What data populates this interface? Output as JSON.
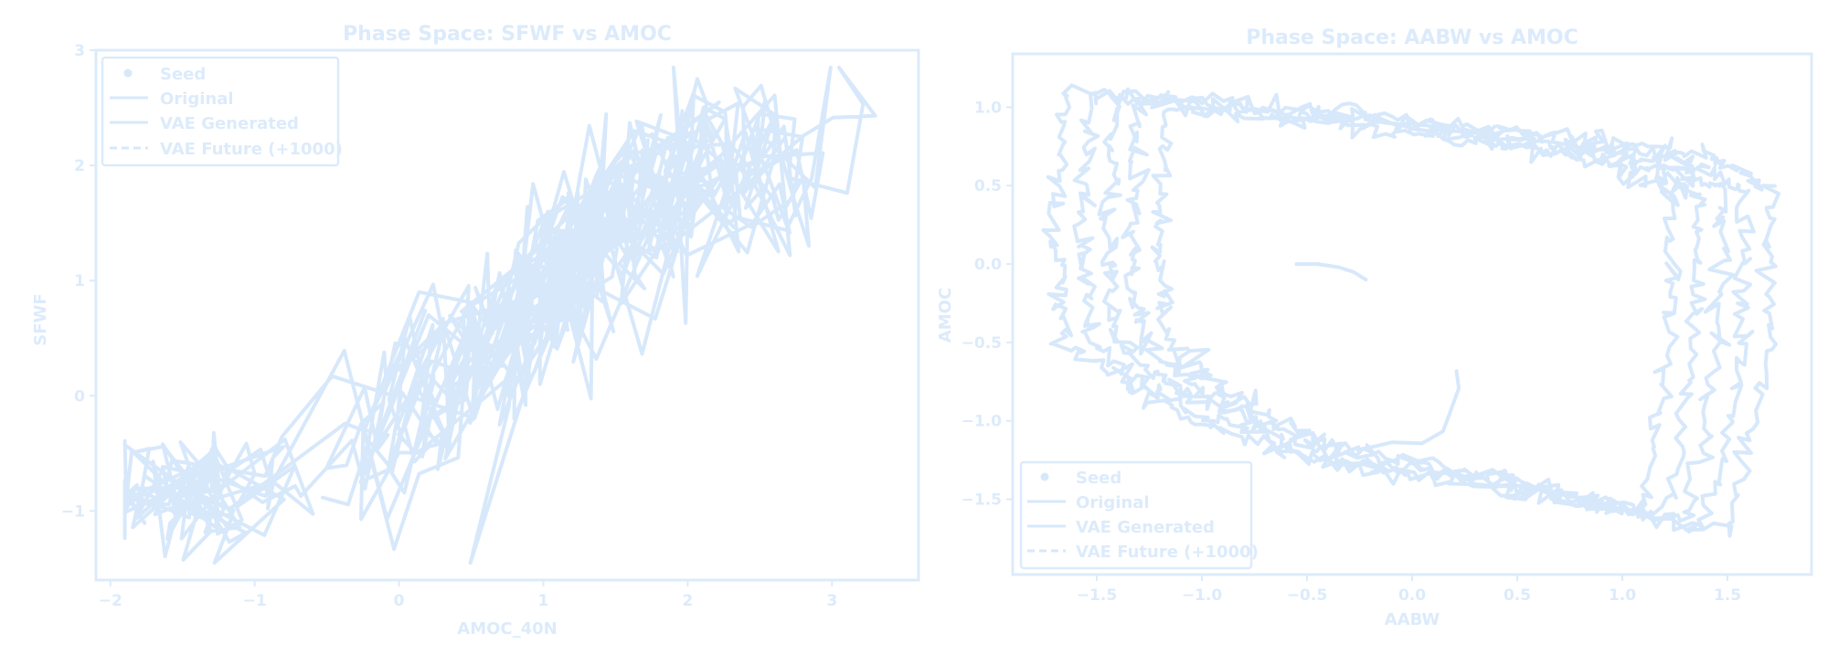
{
  "colors": {
    "series": "#d7e8fb",
    "axes": "#dcebfb",
    "background": "#ffffff"
  },
  "chart_data": [
    {
      "type": "line",
      "title": "Phase Space: SFWF vs AMOC",
      "xlabel": "AMOC_40N",
      "ylabel": "SFWF",
      "xlim": [
        -2.1,
        3.6
      ],
      "ylim": [
        -1.6,
        3.0
      ],
      "xticks": [
        -2,
        -1,
        0,
        1,
        2,
        3
      ],
      "yticks": [
        -1,
        0,
        1,
        2,
        3
      ],
      "xtick_labels": [
        "−2",
        "−1",
        "0",
        "1",
        "2",
        "3"
      ],
      "ytick_labels": [
        "−1",
        "0",
        "1",
        "2",
        "3"
      ],
      "legend": {
        "position": "upper-left",
        "entries": [
          "Seed",
          "Original",
          "VAE Generated",
          "VAE Future (+1000)"
        ]
      },
      "grid": false,
      "series": [
        {
          "name": "Original",
          "style": "solid",
          "trend": {
            "x_range": [
              -1.9,
              3.3
            ],
            "center_points": [
              [
                -1.8,
                -0.85
              ],
              [
                -1.4,
                -0.85
              ],
              [
                -1.0,
                -0.75
              ],
              [
                -0.5,
                -0.55
              ],
              [
                0.0,
                -0.2
              ],
              [
                0.5,
                0.3
              ],
              [
                1.0,
                0.9
              ],
              [
                1.5,
                1.5
              ],
              [
                2.0,
                1.85
              ],
              [
                2.5,
                2.0
              ],
              [
                3.0,
                2.1
              ],
              [
                3.3,
                2.2
              ]
            ],
            "spread": 0.55,
            "n_points": 700
          }
        },
        {
          "name": "VAE Generated",
          "style": "solid",
          "values": []
        },
        {
          "name": "VAE Future (+1000)",
          "style": "dashed",
          "values": []
        },
        {
          "name": "Seed",
          "style": "marker",
          "values": []
        }
      ]
    },
    {
      "type": "line",
      "title": "Phase Space: AABW vs AMOC",
      "xlabel": "AABW",
      "ylabel": "AMOC",
      "xlim": [
        -1.9,
        1.9
      ],
      "ylim": [
        -1.98,
        1.34
      ],
      "xticks": [
        -1.5,
        -1.0,
        -0.5,
        0.0,
        0.5,
        1.0,
        1.5
      ],
      "yticks": [
        -1.5,
        -1.0,
        -0.5,
        0.0,
        0.5,
        1.0
      ],
      "xtick_labels": [
        "−1.5",
        "−1.0",
        "−0.5",
        "0.0",
        "0.5",
        "1.0",
        "1.5"
      ],
      "ytick_labels": [
        "−1.5",
        "−1.0",
        "−0.5",
        "0.0",
        "0.5",
        "1.0"
      ],
      "legend": {
        "position": "lower-left",
        "entries": [
          "Seed",
          "Original",
          "VAE Generated",
          "VAE Future (+1000)"
        ]
      },
      "grid": false,
      "series": [
        {
          "name": "Original",
          "style": "solid",
          "loop_corners": [
            [
              -1.65,
              1.1
            ],
            [
              -0.5,
              1.0
            ],
            [
              0.5,
              0.85
            ],
            [
              1.3,
              0.72
            ],
            [
              1.7,
              0.5
            ],
            [
              1.7,
              -0.5
            ],
            [
              1.5,
              -1.7
            ],
            [
              0.5,
              -1.45
            ],
            [
              -0.5,
              -1.25
            ],
            [
              -1.2,
              -0.9
            ],
            [
              -1.65,
              -0.5
            ],
            [
              -1.7,
              0.2
            ]
          ],
          "n_loops": 5
        },
        {
          "name": "VAE Generated",
          "style": "solid",
          "values": [
            [
              -0.55,
              0.0
            ],
            [
              -0.45,
              0.0
            ],
            [
              -0.35,
              -0.02
            ],
            [
              -0.28,
              -0.05
            ],
            [
              -0.22,
              -0.1
            ]
          ]
        },
        {
          "name": "VAE Future (+1000)",
          "style": "dashed",
          "values": []
        },
        {
          "name": "Seed",
          "style": "marker",
          "values": []
        }
      ]
    }
  ]
}
